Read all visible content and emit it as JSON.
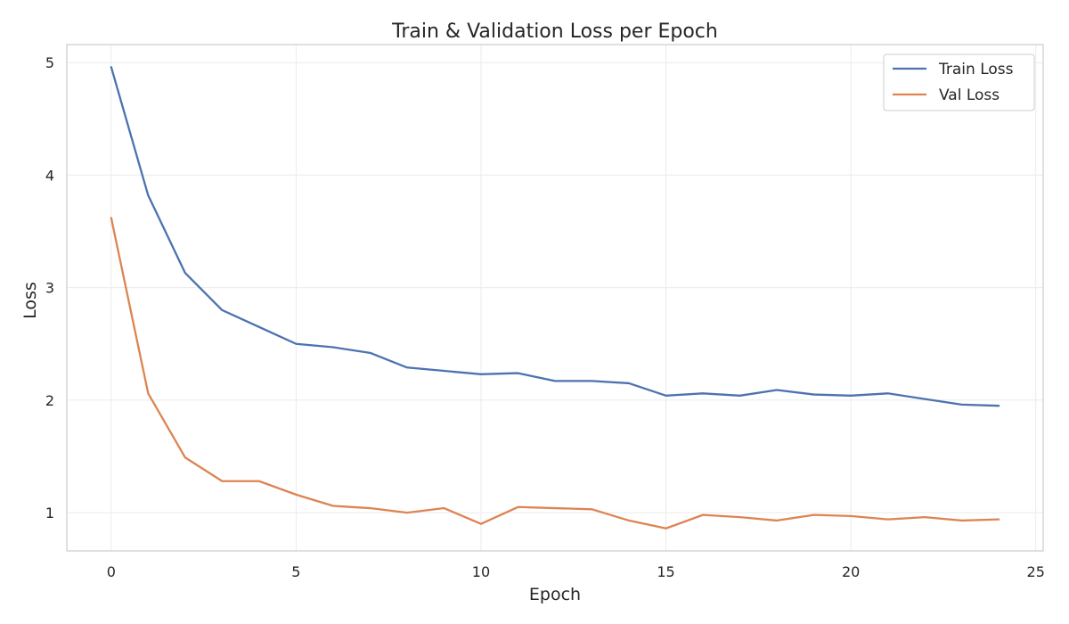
{
  "chart_data": {
    "type": "line",
    "title": "Train & Validation Loss per Epoch",
    "xlabel": "Epoch",
    "ylabel": "Loss",
    "x": [
      0,
      1,
      2,
      3,
      4,
      5,
      6,
      7,
      8,
      9,
      10,
      11,
      12,
      13,
      14,
      15,
      16,
      17,
      18,
      19,
      20,
      21,
      22,
      23,
      24
    ],
    "xlim": [
      -1.2,
      25.2
    ],
    "ylim": [
      0.66,
      5.16
    ],
    "xticks": [
      0,
      5,
      10,
      15,
      20,
      25
    ],
    "yticks": [
      1,
      2,
      3,
      4,
      5
    ],
    "grid": true,
    "legend_position": "top-right",
    "series": [
      {
        "name": "Train Loss",
        "color": "#4c72b0",
        "values": [
          4.96,
          3.82,
          3.13,
          2.8,
          2.65,
          2.5,
          2.47,
          2.42,
          2.29,
          2.26,
          2.23,
          2.24,
          2.17,
          2.17,
          2.15,
          2.04,
          2.06,
          2.04,
          2.09,
          2.05,
          2.04,
          2.06,
          2.01,
          1.96,
          1.95
        ]
      },
      {
        "name": "Val Loss",
        "color": "#dd8452",
        "values": [
          3.62,
          2.06,
          1.49,
          1.28,
          1.28,
          1.16,
          1.06,
          1.04,
          1.0,
          1.04,
          0.9,
          1.05,
          1.04,
          1.03,
          0.93,
          0.86,
          0.98,
          0.96,
          0.93,
          0.98,
          0.97,
          0.94,
          0.96,
          0.93,
          0.94
        ]
      }
    ]
  }
}
